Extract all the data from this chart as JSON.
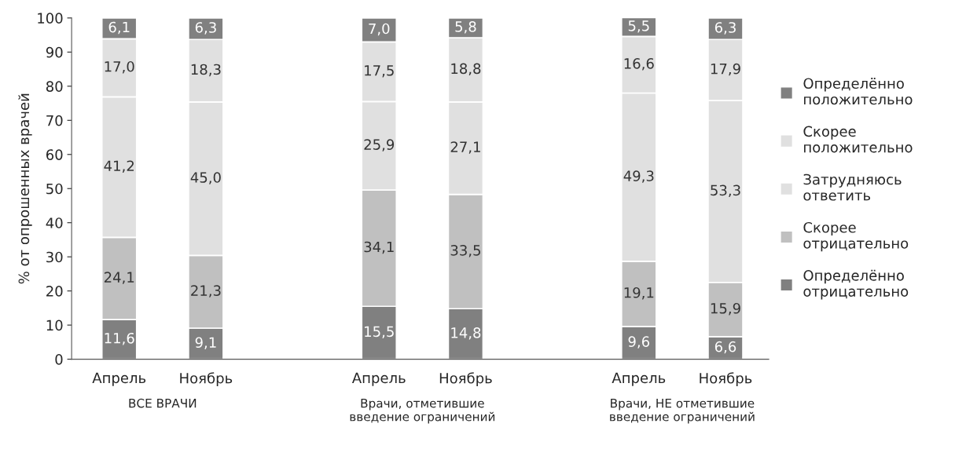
{
  "chart_data": {
    "type": "bar",
    "stacked": true,
    "ylabel": "% от опрошенных врачей",
    "categories": [
      "Апрель",
      "Ноябрь",
      null,
      "Апрель",
      "Ноябрь",
      null,
      "Апрель",
      "Ноябрь"
    ],
    "series": [
      {
        "name": "Определённо\nотрицательно",
        "color": "#808080",
        "values": [
          11.6,
          9.1,
          null,
          15.5,
          14.8,
          null,
          9.6,
          6.6
        ],
        "value_labels": [
          "11,6",
          "9,1",
          null,
          "15,5",
          "14,8",
          null,
          "9,6",
          "6,6"
        ]
      },
      {
        "name": "Скорее\nотрицательно",
        "color": "#c0c0c0",
        "values": [
          24.1,
          21.3,
          null,
          34.1,
          33.5,
          null,
          19.1,
          15.9
        ],
        "value_labels": [
          "24,1",
          "21,3",
          null,
          "34,1",
          "33,5",
          null,
          "19,1",
          "15,9"
        ]
      },
      {
        "name": "Затрудняюсь\nответить",
        "color": "#e0e0e0",
        "values": [
          41.2,
          45.0,
          null,
          25.9,
          27.1,
          null,
          49.3,
          53.3
        ],
        "value_labels": [
          "41,2",
          "45,0",
          null,
          "25,9",
          "27,1",
          null,
          "49,3",
          "53,3"
        ]
      },
      {
        "name": "Скорее\nположительно",
        "color": "#e0e0e0",
        "values": [
          17.0,
          18.3,
          null,
          17.5,
          18.8,
          null,
          16.6,
          17.9
        ],
        "value_labels": [
          "17,0",
          "18,3",
          null,
          "17,5",
          "18,8",
          null,
          "16,6",
          "17,9"
        ]
      },
      {
        "name": "Определённо\nположительно",
        "color": "#808080",
        "values": [
          6.1,
          6.3,
          null,
          7.0,
          5.8,
          null,
          5.5,
          6.3
        ],
        "value_labels": [
          "6,1",
          "6,3",
          null,
          "7,0",
          "5,8",
          null,
          "5,5",
          "6,3"
        ]
      }
    ],
    "annotations": [
      "ВСЕ ВРАЧИ",
      "Врачи, отметившие\nвведение ограничений",
      "Врачи, НЕ отметившие\nвведение ограничений"
    ],
    "ylim": [
      0,
      100
    ],
    "yticks": [
      0,
      10,
      20,
      30,
      40,
      50,
      60,
      70,
      80,
      90,
      100
    ],
    "grid": false,
    "legend": "right"
  }
}
